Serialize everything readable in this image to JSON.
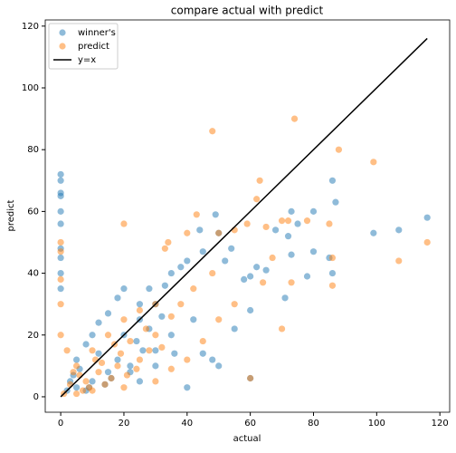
{
  "chart_data": {
    "type": "scatter",
    "title": "compare actual with predict",
    "x_label": "actual",
    "y_label": "predict",
    "xlim": [
      -4.9,
      123.1
    ],
    "ylim": [
      -5,
      122
    ],
    "xticks": [
      0,
      20,
      40,
      60,
      80,
      100,
      120
    ],
    "yticks": [
      0,
      20,
      40,
      60,
      80,
      100,
      120
    ],
    "grid": false,
    "legend": "upper left",
    "series": [
      {
        "name": "winner's",
        "color": "#1f77b4",
        "style": "points",
        "x": [
          0,
          0,
          0,
          0,
          0,
          0,
          0,
          0,
          0,
          0,
          116,
          107,
          99,
          87,
          86,
          85,
          86,
          80,
          80,
          78,
          73,
          72,
          73,
          71,
          75,
          68,
          65,
          62,
          60,
          58,
          54,
          52,
          50,
          49,
          44,
          45,
          40,
          38,
          35,
          33,
          30,
          28,
          25,
          20,
          18,
          15,
          12,
          10,
          8,
          5,
          25,
          40,
          60,
          50,
          45,
          55,
          60,
          42,
          35,
          30,
          22,
          15,
          10,
          5,
          2,
          20,
          25,
          3,
          6,
          12,
          18,
          24,
          28,
          32,
          14,
          8,
          16,
          22,
          26,
          4,
          9,
          30,
          36,
          48
        ],
        "y": [
          72,
          70,
          66,
          65,
          60,
          56,
          48,
          45,
          40,
          35,
          58,
          54,
          53,
          63,
          70,
          45,
          40,
          60,
          47,
          39,
          60,
          52,
          46,
          32,
          56,
          54,
          41,
          42,
          39,
          38,
          48,
          44,
          53,
          59,
          54,
          47,
          44,
          42,
          40,
          36,
          30,
          35,
          30,
          35,
          32,
          27,
          24,
          20,
          17,
          12,
          5,
          3,
          6,
          10,
          14,
          22,
          28,
          25,
          20,
          15,
          10,
          8,
          5,
          3,
          2,
          20,
          25,
          5,
          9,
          14,
          12,
          18,
          22,
          26,
          4,
          2,
          6,
          8,
          15,
          7,
          3,
          10,
          14,
          12
        ]
      },
      {
        "name": "predict",
        "color": "#ff7f0e",
        "style": "points",
        "x": [
          74,
          48,
          99,
          88,
          63,
          85,
          86,
          86,
          107,
          116,
          78,
          72,
          70,
          62,
          59,
          65,
          55,
          50,
          43,
          40,
          33,
          20,
          34,
          67,
          70,
          60,
          50,
          45,
          40,
          35,
          30,
          20,
          10,
          5,
          0,
          0,
          0,
          0,
          0,
          2,
          5,
          10,
          15,
          20,
          25,
          30,
          35,
          28,
          18,
          12,
          8,
          22,
          25,
          30,
          38,
          42,
          55,
          48,
          64,
          73,
          3,
          6,
          9,
          13,
          16,
          19,
          24,
          27,
          32,
          1,
          4,
          7,
          11,
          14,
          17,
          21
        ],
        "y": [
          90,
          86,
          76,
          80,
          70,
          56,
          45,
          36,
          44,
          50,
          57,
          57,
          57,
          64,
          56,
          55,
          54,
          53,
          59,
          53,
          48,
          56,
          50,
          45,
          22,
          6,
          25,
          18,
          12,
          9,
          5,
          3,
          2,
          1,
          50,
          47,
          38,
          30,
          20,
          15,
          10,
          15,
          20,
          25,
          28,
          30,
          26,
          15,
          10,
          8,
          5,
          18,
          12,
          20,
          30,
          35,
          30,
          40,
          37,
          37,
          4,
          7,
          3,
          11,
          6,
          14,
          9,
          22,
          16,
          1,
          8,
          2,
          12,
          4,
          17,
          7
        ]
      },
      {
        "name": "y=x",
        "color": "#000000",
        "style": "line",
        "x": [
          0,
          116
        ],
        "y": [
          0,
          116
        ]
      }
    ]
  }
}
